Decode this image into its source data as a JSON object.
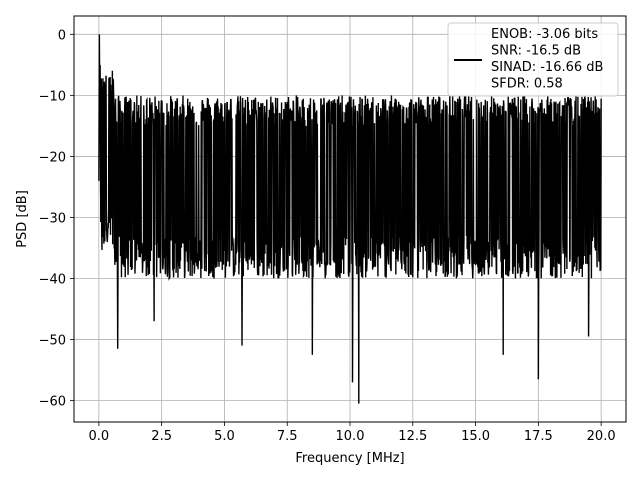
{
  "chart_data": {
    "type": "line",
    "title": "",
    "xlabel": "Frequency [MHz]",
    "ylabel": "PSD [dB]",
    "xlim": [
      -0.99,
      20.99
    ],
    "ylim": [
      -63.5,
      3.0
    ],
    "xticks": [
      0.0,
      2.5,
      5.0,
      7.5,
      10.0,
      12.5,
      15.0,
      17.5,
      20.0
    ],
    "xtick_labels": [
      "0.0",
      "2.5",
      "5.0",
      "7.5",
      "10.0",
      "12.5",
      "15.0",
      "17.5",
      "20.0"
    ],
    "yticks": [
      0,
      -10,
      -20,
      -30,
      -40,
      -50,
      -60
    ],
    "ytick_labels": [
      "0",
      "−10",
      "−20",
      "−30",
      "−40",
      "−50",
      "−60"
    ],
    "grid": true,
    "legend_position": "top-right",
    "legend_lines": [
      "ENOB: -3.06 bits",
      "SNR: -16.5 dB",
      "SINAD: -16.66 dB",
      "SFDR: 0.58"
    ],
    "series": [
      {
        "color": "#000000",
        "x_range": [
          0.0,
          20.0
        ],
        "envelope_top_dB": -13,
        "envelope_bottom_dB": -35,
        "peak": {
          "x": 0.02,
          "y": 0.0
        },
        "deep_notches": [
          {
            "x": 0.75,
            "y": -51.5
          },
          {
            "x": 2.2,
            "y": -47.0
          },
          {
            "x": 5.7,
            "y": -51.0
          },
          {
            "x": 8.5,
            "y": -52.5
          },
          {
            "x": 10.1,
            "y": -57.0
          },
          {
            "x": 10.35,
            "y": -60.5
          },
          {
            "x": 16.1,
            "y": -52.5
          },
          {
            "x": 17.5,
            "y": -56.5
          },
          {
            "x": 19.5,
            "y": -49.5
          }
        ]
      }
    ]
  }
}
